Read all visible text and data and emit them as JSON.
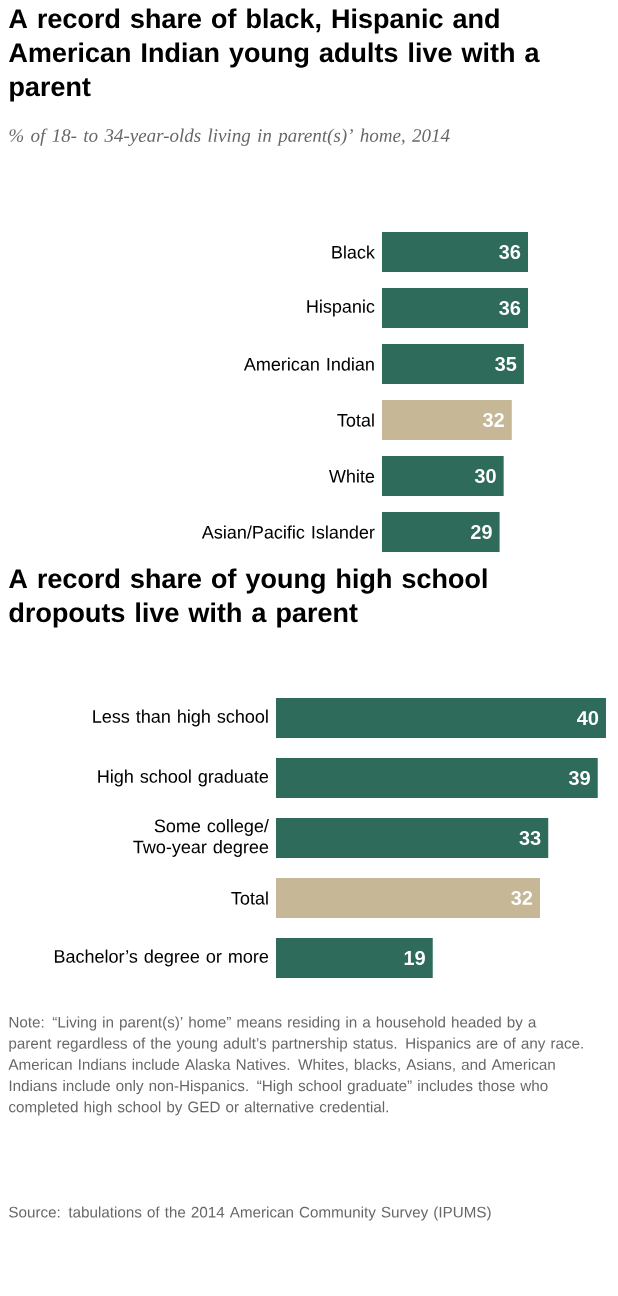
{
  "chart_data": [
    {
      "type": "bar",
      "orientation": "horizontal",
      "title": "A record share of black, Hispanic and American Indian young adults live with a parent",
      "subtitle": "% of 18- to 34-year-olds living in parent(s)’ home, 2014",
      "categories": [
        "Black",
        "Hispanic",
        "American Indian",
        "Total",
        "White",
        "Asian/Pacific Islander"
      ],
      "values": [
        36,
        36,
        35,
        32,
        30,
        29
      ],
      "colors": [
        "#2f6b5b",
        "#2f6b5b",
        "#2f6b5b",
        "#c6b897",
        "#2f6b5b",
        "#2f6b5b"
      ],
      "data_labels": true
    },
    {
      "type": "bar",
      "orientation": "horizontal",
      "title": "A record share of young high school dropouts live with a parent",
      "categories": [
        "Less than high school",
        "High school graduate",
        "Some college/ Two-year degree",
        "Total",
        "Bachelor’s degree or more"
      ],
      "values": [
        40,
        39,
        33,
        32,
        19
      ],
      "colors": [
        "#2f6b5b",
        "#2f6b5b",
        "#2f6b5b",
        "#c6b897",
        "#2f6b5b"
      ],
      "data_labels": true,
      "annotations": [
        "Note: “Living in parent(s)’ home” means residing in a household headed by a parent regardless of the young adult’s partnership status. Hispanics are of any race. American Indians include Alaska Natives. Whites, blacks, Asians, and American Indians include only non-Hispanics. “High school graduate” includes those who completed high school by GED or alternative credential.",
        "Source: tabulations of the 2014 American Community Survey (IPUMS)"
      ]
    }
  ]
}
